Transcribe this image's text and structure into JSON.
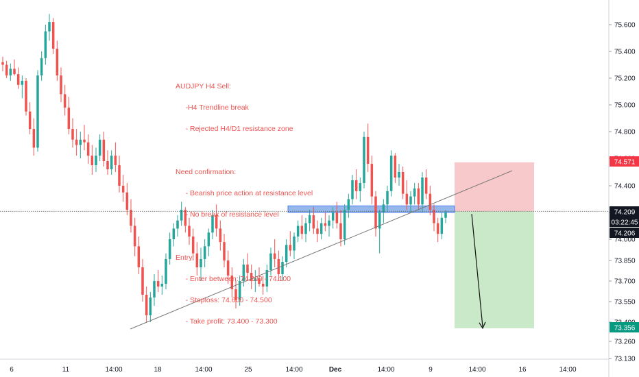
{
  "chart_data": {
    "type": "candlestick",
    "y_tick_labels": [
      "75.600",
      "75.400",
      "75.200",
      "75.000",
      "74.800",
      "74.600",
      "74.400",
      "74.200",
      "74.000",
      "73.850",
      "73.700",
      "73.550",
      "73.400",
      "73.260",
      "73.130"
    ],
    "y_tick_values": [
      75.6,
      75.4,
      75.2,
      75.0,
      74.8,
      74.6,
      74.4,
      74.2,
      74.0,
      73.85,
      73.7,
      73.55,
      73.4,
      73.26,
      73.13
    ],
    "x_tick_labels": [
      "6",
      "11",
      "14:00",
      "18",
      "14:00",
      "25",
      "14:00",
      "Dec",
      "14:00",
      "9",
      "14:00",
      "16",
      "14:00"
    ],
    "price_badges": [
      {
        "label": "74.571",
        "value": 74.571,
        "color": "#f23645"
      },
      {
        "label": "74.209",
        "value": 74.209,
        "color": "#131722"
      },
      {
        "label": "03:22:45",
        "value": 74.14,
        "color": "#131722"
      },
      {
        "label": "74.206",
        "value": 74.076,
        "color": "#131722"
      },
      {
        "label": "73.356",
        "value": 73.356,
        "color": "#089981"
      }
    ],
    "current_price": 74.209,
    "resistance_zone": [
      74.2,
      74.25
    ],
    "trendline": {
      "start": 73.35,
      "end": 74.51
    },
    "short_position": {
      "entry": 74.209,
      "stop": 74.571,
      "target": 73.356
    },
    "colors": {
      "up": "#26a69a",
      "down": "#ef5350",
      "stop_zone": "#f8c9cb",
      "target_zone": "#c9e9c9",
      "resistance": "#90b4e8",
      "annotation": "#ef5350"
    },
    "candles": [
      [
        75.32,
        75.36,
        75.25,
        75.3
      ],
      [
        75.3,
        75.33,
        75.2,
        75.22
      ],
      [
        75.22,
        75.31,
        75.18,
        75.27
      ],
      [
        75.27,
        75.34,
        75.22,
        75.23
      ],
      [
        75.23,
        75.28,
        75.12,
        75.15
      ],
      [
        75.15,
        75.22,
        75.05,
        75.18
      ],
      [
        75.18,
        75.2,
        74.92,
        74.95
      ],
      [
        74.95,
        75.02,
        74.78,
        74.82
      ],
      [
        74.82,
        74.9,
        74.62,
        74.68
      ],
      [
        74.68,
        75.26,
        74.65,
        75.22
      ],
      [
        75.22,
        75.4,
        75.18,
        75.35
      ],
      [
        75.35,
        75.6,
        75.3,
        75.55
      ],
      [
        75.55,
        75.68,
        75.48,
        75.62
      ],
      [
        75.62,
        75.65,
        75.38,
        75.42
      ],
      [
        75.42,
        75.48,
        75.18,
        75.22
      ],
      [
        75.22,
        75.28,
        75.02,
        75.08
      ],
      [
        75.08,
        75.15,
        74.92,
        74.98
      ],
      [
        74.98,
        75.06,
        74.78,
        74.82
      ],
      [
        74.82,
        74.9,
        74.68,
        74.74
      ],
      [
        74.74,
        74.82,
        74.62,
        74.7
      ],
      [
        74.7,
        74.8,
        74.6,
        74.74
      ],
      [
        74.74,
        74.85,
        74.66,
        74.72
      ],
      [
        74.72,
        74.78,
        74.56,
        74.62
      ],
      [
        74.62,
        74.7,
        74.48,
        74.55
      ],
      [
        74.55,
        74.68,
        74.5,
        74.62
      ],
      [
        74.62,
        74.78,
        74.58,
        74.74
      ],
      [
        74.74,
        74.8,
        74.54,
        74.58
      ],
      [
        74.58,
        74.66,
        74.48,
        74.52
      ],
      [
        74.52,
        74.66,
        74.48,
        74.62
      ],
      [
        74.62,
        74.72,
        74.5,
        74.55
      ],
      [
        74.55,
        74.62,
        74.35,
        74.4
      ],
      [
        74.4,
        74.48,
        74.28,
        74.35
      ],
      [
        74.35,
        74.42,
        74.18,
        74.22
      ],
      [
        74.22,
        74.3,
        74.05,
        74.1
      ],
      [
        74.1,
        74.16,
        73.88,
        73.95
      ],
      [
        73.95,
        74.02,
        73.75,
        73.8
      ],
      [
        73.8,
        73.86,
        73.55,
        73.6
      ],
      [
        73.6,
        73.66,
        73.4,
        73.45
      ],
      [
        73.45,
        73.62,
        73.4,
        73.58
      ],
      [
        73.58,
        73.75,
        73.52,
        73.7
      ],
      [
        73.7,
        73.78,
        73.62,
        73.66
      ],
      [
        73.66,
        73.74,
        73.6,
        73.68
      ],
      [
        73.68,
        73.9,
        73.64,
        73.86
      ],
      [
        73.86,
        74.05,
        73.82,
        74.0
      ],
      [
        74.0,
        74.12,
        73.95,
        74.08
      ],
      [
        74.08,
        74.18,
        74.02,
        74.14
      ],
      [
        74.14,
        74.28,
        74.1,
        74.22
      ],
      [
        74.22,
        74.24,
        74.05,
        74.1
      ],
      [
        74.1,
        74.16,
        73.96,
        74.02
      ],
      [
        74.02,
        74.08,
        73.85,
        73.9
      ],
      [
        73.9,
        73.98,
        73.74,
        73.8
      ],
      [
        73.8,
        73.94,
        73.7,
        73.86
      ],
      [
        73.86,
        74.0,
        73.8,
        73.95
      ],
      [
        73.95,
        74.08,
        73.88,
        74.05
      ],
      [
        74.05,
        74.22,
        74.0,
        74.18
      ],
      [
        74.18,
        74.26,
        74.02,
        74.08
      ],
      [
        74.08,
        74.14,
        73.92,
        73.98
      ],
      [
        73.98,
        74.04,
        73.8,
        73.85
      ],
      [
        73.85,
        73.92,
        73.68,
        73.74
      ],
      [
        73.74,
        73.8,
        73.58,
        73.64
      ],
      [
        73.64,
        73.7,
        73.5,
        73.56
      ],
      [
        73.56,
        73.74,
        73.52,
        73.7
      ],
      [
        73.7,
        73.86,
        73.66,
        73.82
      ],
      [
        73.82,
        73.9,
        73.7,
        73.76
      ],
      [
        73.76,
        73.82,
        73.64,
        73.7
      ],
      [
        73.7,
        73.78,
        73.62,
        73.72
      ],
      [
        73.72,
        73.8,
        73.66,
        73.68
      ],
      [
        73.68,
        73.74,
        73.6,
        73.66
      ],
      [
        73.66,
        73.82,
        73.62,
        73.78
      ],
      [
        73.78,
        73.94,
        73.74,
        73.9
      ],
      [
        73.9,
        74.0,
        73.8,
        73.86
      ],
      [
        73.86,
        73.92,
        73.7,
        73.75
      ],
      [
        73.75,
        73.88,
        73.7,
        73.84
      ],
      [
        73.84,
        74.0,
        73.8,
        73.96
      ],
      [
        73.96,
        74.06,
        73.88,
        73.92
      ],
      [
        73.92,
        74.05,
        73.86,
        74.02
      ],
      [
        74.02,
        74.14,
        73.98,
        74.1
      ],
      [
        74.1,
        74.18,
        74.0,
        74.04
      ],
      [
        74.04,
        74.16,
        73.98,
        74.12
      ],
      [
        74.12,
        74.22,
        74.06,
        74.18
      ],
      [
        74.18,
        74.24,
        74.04,
        74.08
      ],
      [
        74.08,
        74.14,
        73.98,
        74.04
      ],
      [
        74.04,
        74.16,
        74.0,
        74.12
      ],
      [
        74.12,
        74.2,
        74.06,
        74.1
      ],
      [
        74.1,
        74.18,
        74.02,
        74.14
      ],
      [
        74.14,
        74.24,
        74.08,
        74.2
      ],
      [
        74.2,
        74.28,
        74.08,
        74.12
      ],
      [
        74.12,
        74.22,
        73.95,
        74.0
      ],
      [
        74.0,
        74.26,
        73.96,
        74.22
      ],
      [
        74.22,
        74.34,
        74.16,
        74.3
      ],
      [
        74.3,
        74.48,
        74.26,
        74.44
      ],
      [
        74.44,
        74.52,
        74.3,
        74.36
      ],
      [
        74.36,
        74.46,
        74.28,
        74.42
      ],
      [
        74.42,
        74.8,
        74.38,
        74.76
      ],
      [
        74.76,
        74.86,
        74.5,
        74.56
      ],
      [
        74.56,
        74.62,
        74.26,
        74.32
      ],
      [
        74.32,
        74.36,
        74.02,
        74.08
      ],
      [
        74.08,
        74.22,
        73.9,
        74.2
      ],
      [
        74.2,
        74.3,
        74.12,
        74.26
      ],
      [
        74.26,
        74.4,
        74.2,
        74.36
      ],
      [
        74.36,
        74.66,
        74.32,
        74.62
      ],
      [
        74.62,
        74.64,
        74.42,
        74.46
      ],
      [
        74.46,
        74.56,
        74.4,
        74.5
      ],
      [
        74.5,
        74.54,
        74.3,
        74.34
      ],
      [
        74.34,
        74.44,
        74.22,
        74.26
      ],
      [
        74.26,
        74.36,
        74.2,
        74.32
      ],
      [
        74.32,
        74.42,
        74.26,
        74.38
      ],
      [
        74.38,
        74.42,
        74.22,
        74.26
      ],
      [
        74.26,
        74.5,
        74.2,
        74.46
      ],
      [
        74.46,
        74.52,
        74.3,
        74.34
      ],
      [
        74.34,
        74.4,
        74.18,
        74.22
      ],
      [
        74.22,
        74.26,
        74.06,
        74.12
      ],
      [
        74.12,
        74.16,
        73.98,
        74.04
      ],
      [
        74.04,
        74.2,
        74.0,
        74.16
      ],
      [
        74.16,
        74.22,
        74.12,
        74.2
      ]
    ]
  },
  "annotation_lines": [
    "AUDJPY H4 Sell:",
    "     -H4 Trendline break",
    "     - Rejected H4/D1 resistance zone",
    "",
    "Need confirmation:",
    "     - Bearish price action at resistance level",
    "     - No break of resistance level",
    "",
    "Entry:",
    "     - Enter between: 74.200 - 74.100",
    "     - Stoploss: 74.600 - 74.500",
    "     - Take profit: 73.400 - 73.300"
  ]
}
